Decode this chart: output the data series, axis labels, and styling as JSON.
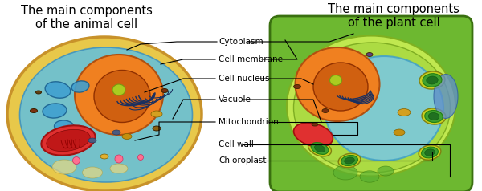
{
  "title_animal": "The main components\nof the animal cell",
  "title_plant": "The main components\nof the plant cell",
  "title_fontsize": 10.5,
  "bg_color": "#ffffff",
  "labels": [
    "Cytoplasm",
    "Cell membrane",
    "Cell nucleus",
    "Vacuole",
    "Mitochondrion",
    "Cell wall",
    "Chloroplast"
  ],
  "label_fontsize": 7.5,
  "animal_cell": {
    "outer_color": "#E8C84A",
    "outer_edge": "#C8922A",
    "cytoplasm_color": "#5BC8E8",
    "nucleus_color": "#FF8C00",
    "er_color": "#5BA3D9"
  },
  "plant_cell": {
    "wall_color": "#6DB830",
    "wall_edge": "#4A8820",
    "membrane_color": "#A8E040",
    "inner_color": "#90D035",
    "vacuole_color": "#70C8E8",
    "nucleus_color": "#FF8C00"
  }
}
